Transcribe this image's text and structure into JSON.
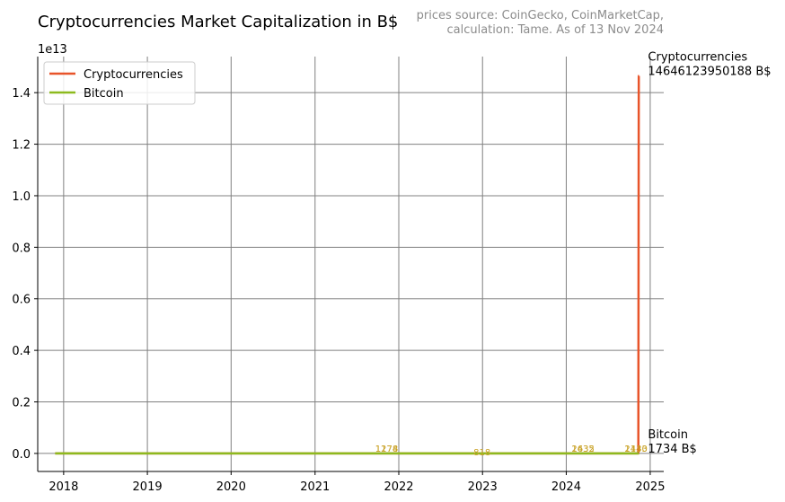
{
  "chart_data": {
    "type": "line",
    "title": "Cryptocurrencies Market Capitalization in B$",
    "source_note": [
      "prices source: CoinGecko, CoinMarketCap,",
      "calculation: Tame. As of 13 Nov 2024"
    ],
    "scale_note": "1e13",
    "xlabel": "",
    "ylabel": "",
    "x_ticks": [
      "2018",
      "2019",
      "2020",
      "2021",
      "2022",
      "2023",
      "2024",
      "2025"
    ],
    "y_ticks": [
      "0.0",
      "0.2",
      "0.4",
      "0.6",
      "0.8",
      "1.0",
      "1.2",
      "1.4"
    ],
    "xlim": [
      "2017-09-10",
      "2025-03-01"
    ],
    "ylim": [
      -0.07,
      1.54
    ],
    "grid": true,
    "legend_position": "top-left",
    "series": [
      {
        "name": "Cryptocurrencies",
        "color": "#e8542a",
        "points": [
          [
            "2017-11-25",
            0
          ],
          [
            "2024-11-10",
            0
          ],
          [
            "2024-11-12",
            1.4646123950188
          ],
          [
            "2024-11-13",
            1.4646123950188
          ]
        ]
      },
      {
        "name": "Bitcoin",
        "color": "#8dba1e",
        "points": [
          [
            "2017-11-25",
            0
          ],
          [
            "2024-11-13",
            0
          ]
        ]
      }
    ],
    "end_labels": [
      {
        "series": "Cryptocurrencies",
        "line1": "Cryptocurrencies",
        "line2": "14646123950188 B$",
        "at": [
          "2024-11-13",
          1.4646123950188
        ]
      },
      {
        "series": "Bitcoin",
        "line1": "Bitcoin",
        "line2": "1734 B$",
        "at": [
          "2024-11-13",
          0
        ]
      }
    ],
    "annotations": [
      {
        "text": "1178",
        "x": "2021-11-09",
        "y": 0
      },
      {
        "text": "1274",
        "x": "2021-11-09",
        "y": 0
      },
      {
        "text": "818",
        "x": "2022-12-30",
        "y": -0.015
      },
      {
        "text": "1435",
        "x": "2024-03-14",
        "y": 0
      },
      {
        "text": "2632",
        "x": "2024-03-14",
        "y": 0
      },
      {
        "text": "1143",
        "x": "2024-10-31",
        "y": 0
      },
      {
        "text": "2430",
        "x": "2024-10-31",
        "y": 0
      }
    ],
    "annotation_color": "#c9a227"
  }
}
